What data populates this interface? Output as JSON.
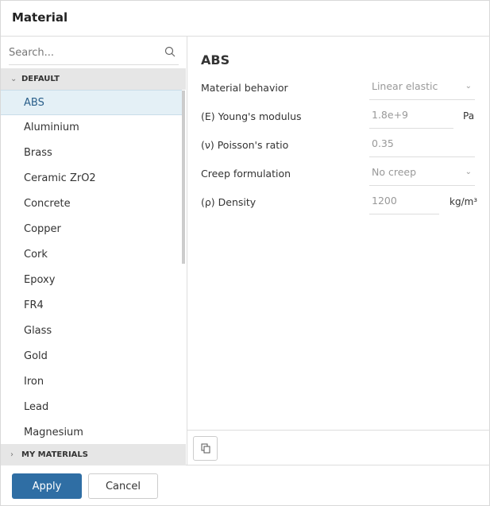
{
  "dialog": {
    "title": "Material"
  },
  "search": {
    "placeholder": "Search..."
  },
  "groups": {
    "default": "DEFAULT",
    "mine": "MY MATERIALS"
  },
  "materials": [
    "ABS",
    "Aluminium",
    "Brass",
    "Ceramic ZrO2",
    "Concrete",
    "Copper",
    "Cork",
    "Epoxy",
    "FR4",
    "Glass",
    "Gold",
    "Iron",
    "Lead",
    "Magnesium"
  ],
  "selected": "ABS",
  "detail": {
    "name": "ABS",
    "behavior": {
      "label": "Material behavior",
      "value": "Linear elastic"
    },
    "youngs": {
      "label": "(E) Young's modulus",
      "value": "1.8e+9",
      "unit": "Pa"
    },
    "poisson": {
      "label": "(ν) Poisson's ratio",
      "value": "0.35"
    },
    "creep": {
      "label": "Creep formulation",
      "value": "No creep"
    },
    "density": {
      "label": "(ρ) Density",
      "value": "1200",
      "unit": "kg/m³"
    }
  },
  "footer": {
    "apply": "Apply",
    "cancel": "Cancel"
  },
  "colors": {
    "primary": "#2f6ea4",
    "selected_bg": "#e4f0f6"
  }
}
